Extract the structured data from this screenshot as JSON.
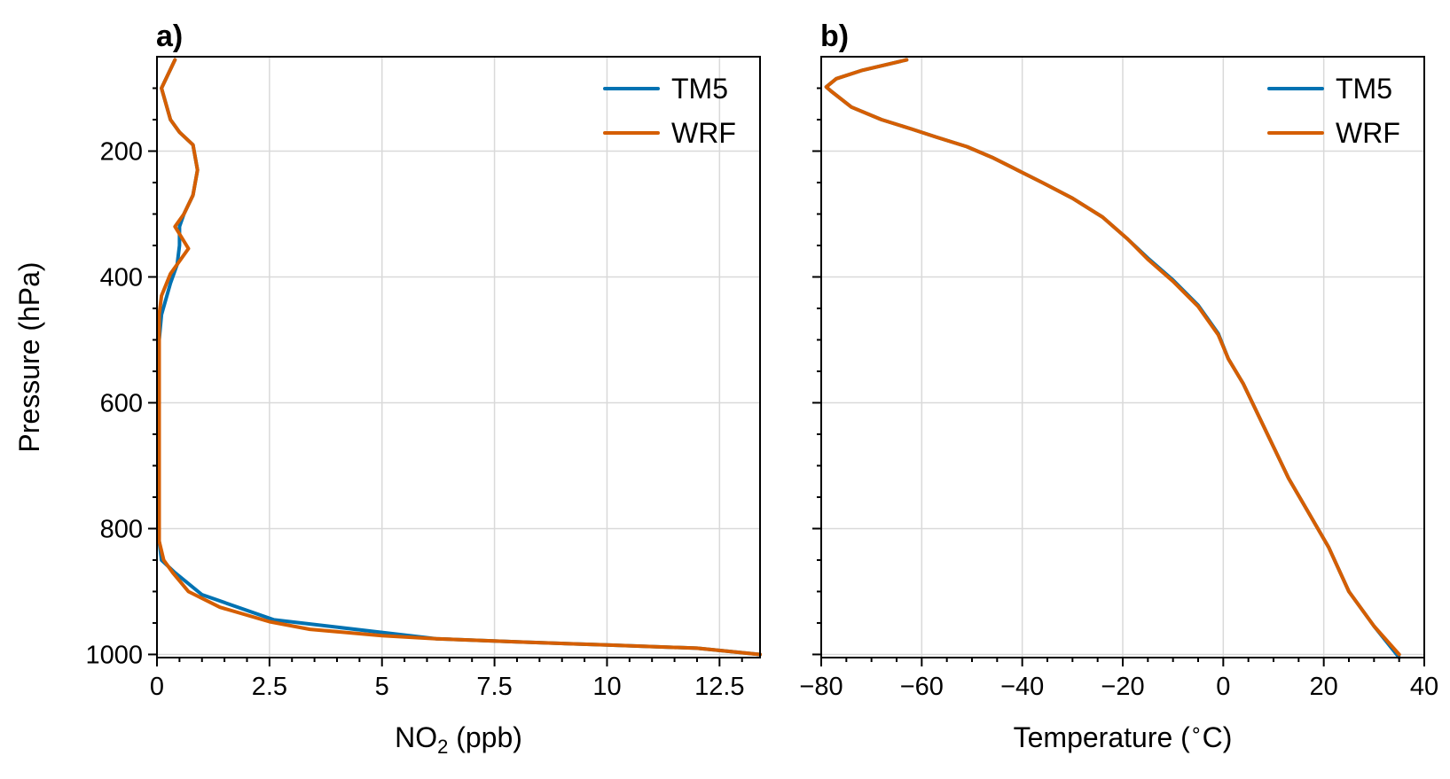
{
  "chart_data": [
    {
      "type": "line",
      "panel_label": "a)",
      "xlabel_main": "NO",
      "xlabel_sub": "2",
      "xlabel_tail": " (ppb)",
      "ylabel": "Pressure (hPa)",
      "xlim": [
        0,
        13.4
      ],
      "ylim": [
        1005,
        50
      ],
      "y_inverted": true,
      "grid": true,
      "legend_position": "upper-right",
      "x_ticks": [
        0,
        2.5,
        5,
        7.5,
        10,
        12.5
      ],
      "x_tick_labels": [
        "0",
        "2.5",
        "5",
        "7.5",
        "10",
        "12.5"
      ],
      "x_minor_ticks": [
        0.5,
        1,
        1.5,
        2,
        3,
        3.5,
        4,
        4.5,
        5.5,
        6,
        6.5,
        7,
        8,
        8.5,
        9,
        9.5,
        10.5,
        11,
        11.5,
        12,
        13
      ],
      "y_ticks": [
        200,
        400,
        600,
        800,
        1000
      ],
      "y_tick_labels": [
        "200",
        "400",
        "600",
        "800",
        "1000"
      ],
      "y_minor_ticks": [
        100,
        150,
        250,
        300,
        350,
        450,
        500,
        550,
        650,
        700,
        750,
        850,
        900,
        950
      ],
      "series": [
        {
          "name": "TM5",
          "color": "#0072b2",
          "x": [
            0.4,
            0.1,
            0.3,
            0.5,
            0.8,
            0.9,
            0.8,
            0.6,
            0.5,
            0.5,
            0.45,
            0.3,
            0.1,
            0.05,
            0.05,
            0.05,
            0.05,
            0.05,
            0.1,
            0.4,
            1.0,
            2.6,
            5.0,
            6.2,
            8.0,
            10.0,
            12.0,
            13.4
          ],
          "y": [
            55,
            100,
            150,
            170,
            190,
            230,
            270,
            300,
            320,
            350,
            380,
            410,
            460,
            500,
            600,
            700,
            780,
            820,
            850,
            870,
            905,
            945,
            965,
            975,
            980,
            985,
            990,
            1000
          ]
        },
        {
          "name": "WRF",
          "color": "#d55e00",
          "x": [
            0.4,
            0.1,
            0.3,
            0.5,
            0.8,
            0.9,
            0.8,
            0.6,
            0.4,
            0.7,
            0.3,
            0.1,
            0.05,
            0.05,
            0.05,
            0.05,
            0.05,
            0.05,
            0.15,
            0.35,
            0.7,
            1.4,
            2.5,
            3.4,
            5.0,
            6.2,
            8.0,
            10.0,
            12.0,
            13.4
          ],
          "y": [
            55,
            100,
            150,
            170,
            190,
            230,
            270,
            300,
            320,
            355,
            395,
            430,
            460,
            500,
            600,
            700,
            780,
            820,
            850,
            870,
            900,
            925,
            948,
            960,
            970,
            975,
            980,
            985,
            990,
            1000
          ]
        }
      ]
    },
    {
      "type": "line",
      "panel_label": "b)",
      "xlabel": "Temperature (∘C)",
      "xlabel_main": "Temperature (",
      "xlabel_sup": "∘",
      "xlabel_tail": "C)",
      "ylabel": "",
      "xlim": [
        -80,
        40
      ],
      "ylim": [
        1005,
        50
      ],
      "y_inverted": true,
      "grid": true,
      "legend_position": "upper-right",
      "x_ticks": [
        -80,
        -60,
        -40,
        -20,
        0,
        20,
        40
      ],
      "x_tick_labels": [
        "−80",
        "−60",
        "−40",
        "−20",
        "0",
        "20",
        "40"
      ],
      "x_minor_ticks": [
        -75,
        -70,
        -65,
        -55,
        -50,
        -45,
        -35,
        -30,
        -25,
        -15,
        -10,
        -5,
        5,
        10,
        15,
        25,
        30,
        35
      ],
      "y_ticks": [
        200,
        400,
        600,
        800,
        1000
      ],
      "y_minor_ticks": [
        100,
        150,
        250,
        300,
        350,
        450,
        500,
        550,
        650,
        700,
        750,
        850,
        900,
        950
      ],
      "series": [
        {
          "name": "TM5",
          "color": "#0072b2",
          "x": [
            -63,
            -72,
            -77,
            -79,
            -78,
            -74,
            -68,
            -62,
            -57,
            -51,
            -46,
            -41,
            -36,
            -30,
            -24,
            -19,
            -15,
            -10,
            -5,
            -1,
            1,
            4,
            7,
            10,
            13,
            17,
            21,
            25,
            30,
            35
          ],
          "y": [
            55,
            72,
            85,
            98,
            105,
            130,
            150,
            165,
            178,
            193,
            210,
            230,
            250,
            275,
            305,
            340,
            370,
            405,
            445,
            490,
            530,
            570,
            620,
            670,
            720,
            775,
            830,
            900,
            955,
            1005
          ]
        },
        {
          "name": "WRF",
          "color": "#d55e00",
          "x": [
            -63,
            -72,
            -77,
            -79,
            -78,
            -74,
            -68,
            -62,
            -57,
            -51,
            -46,
            -41,
            -36,
            -30,
            -24,
            -19,
            -15,
            -10,
            -5,
            -1,
            1,
            4,
            7,
            10,
            13,
            17,
            21,
            25,
            30,
            35
          ],
          "y": [
            55,
            72,
            85,
            98,
            105,
            130,
            150,
            165,
            178,
            193,
            210,
            230,
            250,
            275,
            305,
            340,
            372,
            407,
            447,
            492,
            530,
            570,
            620,
            670,
            720,
            775,
            830,
            900,
            955,
            1000
          ]
        }
      ]
    }
  ]
}
